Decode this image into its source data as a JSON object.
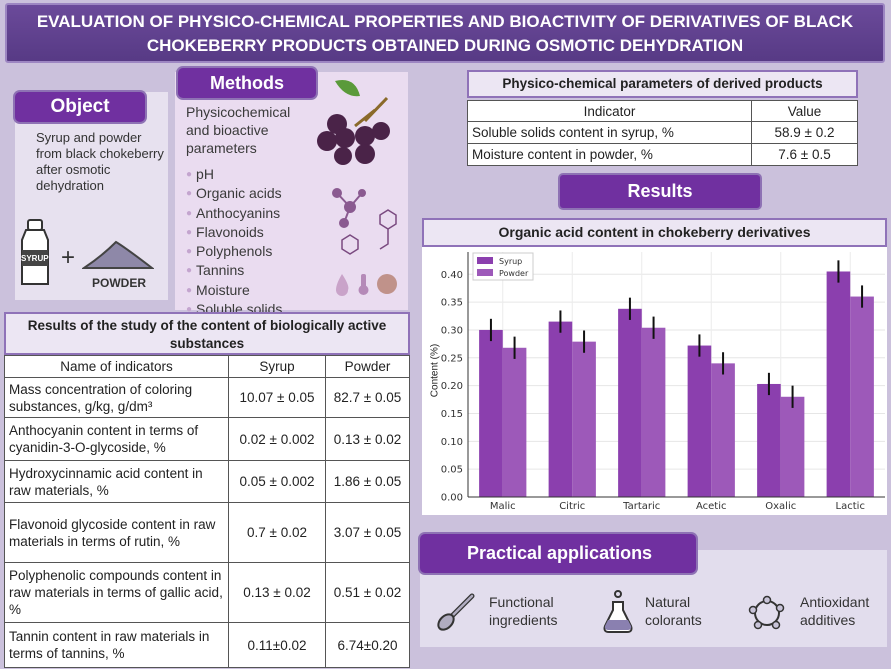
{
  "title": "EVALUATION OF PHYSICO-CHEMICAL PROPERTIES AND BIOACTIVITY OF DERIVATIVES OF BLACK CHOKEBERRY PRODUCTS OBTAINED DURING OSMOTIC DEHYDRATION",
  "object": {
    "heading": "Object",
    "text": "Syrup and powder from black chokeberry after osmotic dehydration",
    "syrup_label": "SYRUP",
    "plus": "+",
    "powder_label": "POWDER"
  },
  "methods": {
    "heading": "Methods",
    "intro": "Physicochemical and bioactive parameters",
    "items": [
      "pH",
      "Organic acids",
      "Anthocyanins",
      "Flavonoids",
      "Polyphenols",
      "Tannins",
      "Moisture",
      "Soluble solids"
    ]
  },
  "physico": {
    "heading": "Physico-chemical  parameters of derived products",
    "columns": [
      "Indicator",
      "Value"
    ],
    "rows": [
      [
        "Soluble solids content in syrup, %",
        "58.9 ± 0.2"
      ],
      [
        "Moisture  content in powder, %",
        "7.6 ± 0.5"
      ]
    ]
  },
  "results": {
    "heading": "Results"
  },
  "bio": {
    "heading": "Results of the study  of the content of biologically active substances",
    "columns": [
      "Name of indicators",
      "Syrup",
      "Powder"
    ],
    "rows": [
      [
        "Mass concentration of coloring substances, g/kg,  g/dm³",
        "10.07 ± 0.05",
        "82.7 ± 0.05"
      ],
      [
        "Anthocyanin content in terms of cyanidin-3-O-glycoside,  %",
        "0.02 ± 0.002",
        "0.13 ± 0.02"
      ],
      [
        "Hydroxycinnamic acid content in raw materials, %",
        "0.05 ± 0.002",
        "1.86 ± 0.05"
      ],
      [
        "Flavonoid glycoside content in raw materials in terms of rutin, %",
        "0.7 ± 0.02",
        "3.07 ± 0.05"
      ],
      [
        "Polyphenolic compounds content in raw materials in terms of gallic acid, %",
        "0.13 ± 0.02",
        "0.51 ± 0.02"
      ],
      [
        "Tannin content in raw materials in terms of tannins, %",
        "0.11±0.02",
        "6.74±0.20"
      ]
    ]
  },
  "chart_data": {
    "type": "bar",
    "title": "Organic acid content in chokeberry derivatives",
    "xlabel": "",
    "ylabel": "Content (%)",
    "categories": [
      "Malic",
      "Citric",
      "Tartaric",
      "Acetic",
      "Oxalic",
      "Lactic"
    ],
    "series": [
      {
        "name": "Syrup",
        "values": [
          0.3,
          0.315,
          0.338,
          0.272,
          0.203,
          0.405
        ],
        "errors": [
          0.02,
          0.02,
          0.02,
          0.02,
          0.02,
          0.02
        ],
        "color": "#8b3fae"
      },
      {
        "name": "Powder",
        "values": [
          0.268,
          0.279,
          0.304,
          0.24,
          0.18,
          0.36
        ],
        "errors": [
          0.02,
          0.02,
          0.02,
          0.02,
          0.02,
          0.02
        ],
        "color": "#9d59b9"
      }
    ],
    "ylim": [
      0,
      0.44
    ],
    "yticks": [
      "0.00",
      "0.05",
      "0.10",
      "0.15",
      "0.20",
      "0.25",
      "0.30",
      "0.35",
      "0.40"
    ],
    "grid": true,
    "legend": "top-left"
  },
  "applications": {
    "heading": "Practical applications",
    "items": [
      {
        "icon": "spoon-icon",
        "label": "Functional ingredients"
      },
      {
        "icon": "flask-icon",
        "label": "Natural colorants"
      },
      {
        "icon": "molecule-ring-icon",
        "label": "Antioxidant additives"
      }
    ]
  }
}
